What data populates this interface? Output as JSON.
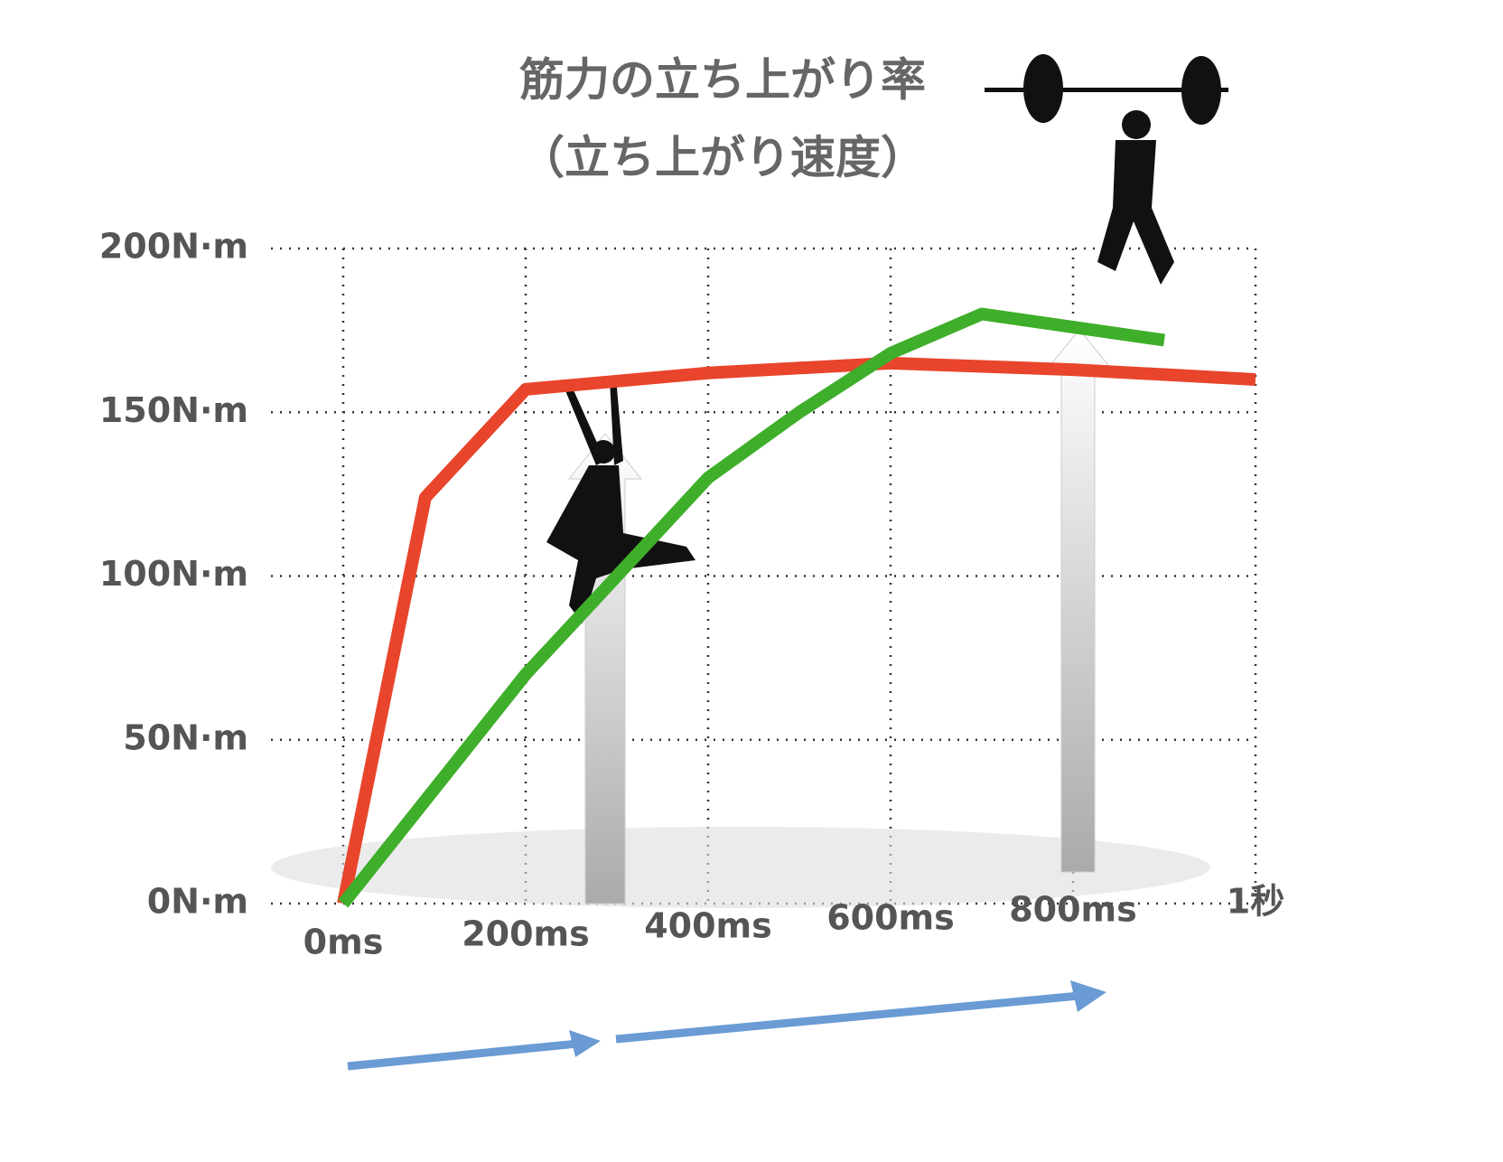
{
  "chart_data": {
    "type": "line",
    "title": "筋力の立ち上がり率",
    "subtitle": "（立ち上がり速度）",
    "xlim": [
      0,
      1000
    ],
    "xticks": [
      {
        "value": 0,
        "label": "0ms"
      },
      {
        "value": 200,
        "label": "200ms"
      },
      {
        "value": 400,
        "label": "400ms"
      },
      {
        "value": 600,
        "label": "600ms"
      },
      {
        "value": 800,
        "label": "800ms"
      },
      {
        "value": 1000,
        "label": "1秒"
      }
    ],
    "ylim": [
      0,
      200
    ],
    "yticks": [
      {
        "value": 0,
        "label": "0N·m"
      },
      {
        "value": 50,
        "label": "50N·m"
      },
      {
        "value": 100,
        "label": "100N·m"
      },
      {
        "value": 150,
        "label": "150N·m"
      },
      {
        "value": 200,
        "label": "200N·m"
      }
    ],
    "grid": true,
    "series": [
      {
        "color": "#e8452c",
        "x": [
          0,
          90,
          200,
          400,
          600,
          800,
          1000
        ],
        "values": [
          0,
          124,
          157,
          162,
          165,
          163,
          160
        ]
      },
      {
        "color": "#3fae2a",
        "x": [
          0,
          200,
          400,
          500,
          600,
          700,
          900
        ],
        "values": [
          0,
          70,
          130,
          150,
          168,
          180,
          172
        ]
      }
    ]
  }
}
